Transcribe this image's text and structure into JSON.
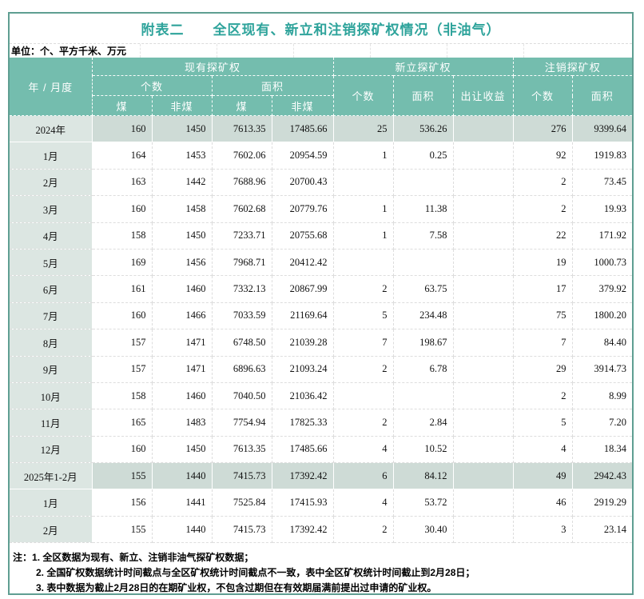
{
  "title": "附表二　　全区现有、新立和注销探矿权情况（非油气）",
  "unit_note": "单位：个、平方千米、万元",
  "colors": {
    "header_bg": "#74BDAE",
    "outer_border": "#5F9E92",
    "title_text": "#2EA39B",
    "highlight_row_bg": "#CEDBD6",
    "label_column_bg": "#DCE6E2"
  },
  "header": {
    "year_month": "年 / 月度",
    "existing": {
      "label": "现有探矿权",
      "count": {
        "label": "个数",
        "coal": "煤",
        "noncoal": "非煤"
      },
      "area": {
        "label": "面积",
        "coal": "煤",
        "noncoal": "非煤"
      }
    },
    "new": {
      "label": "新立探矿权",
      "count": "个数",
      "area": "面积",
      "revenue": "出让收益"
    },
    "cancel": {
      "label": "注销探矿权",
      "count": "个数",
      "area": "面积"
    }
  },
  "table": {
    "rows": [
      {
        "label": "2024年",
        "highlight": true,
        "cells": [
          "160",
          "1450",
          "7613.35",
          "17485.66",
          "25",
          "536.26",
          "",
          "276",
          "9399.64"
        ]
      },
      {
        "label": "1月",
        "highlight": false,
        "cells": [
          "164",
          "1453",
          "7602.06",
          "20954.59",
          "1",
          "0.25",
          "",
          "92",
          "1919.83"
        ]
      },
      {
        "label": "2月",
        "highlight": false,
        "cells": [
          "163",
          "1442",
          "7688.96",
          "20700.43",
          "",
          "",
          "",
          "2",
          "73.45"
        ]
      },
      {
        "label": "3月",
        "highlight": false,
        "cells": [
          "160",
          "1458",
          "7602.68",
          "20779.76",
          "1",
          "11.38",
          "",
          "2",
          "19.93"
        ]
      },
      {
        "label": "4月",
        "highlight": false,
        "cells": [
          "158",
          "1450",
          "7233.71",
          "20755.68",
          "1",
          "7.58",
          "",
          "22",
          "171.92"
        ]
      },
      {
        "label": "5月",
        "highlight": false,
        "cells": [
          "169",
          "1456",
          "7968.71",
          "20412.42",
          "",
          "",
          "",
          "19",
          "1000.73"
        ]
      },
      {
        "label": "6月",
        "highlight": false,
        "cells": [
          "161",
          "1460",
          "7332.13",
          "20867.99",
          "2",
          "63.75",
          "",
          "17",
          "379.92"
        ]
      },
      {
        "label": "7月",
        "highlight": false,
        "cells": [
          "160",
          "1466",
          "7033.59",
          "21169.64",
          "5",
          "234.48",
          "",
          "75",
          "1800.20"
        ]
      },
      {
        "label": "8月",
        "highlight": false,
        "cells": [
          "157",
          "1471",
          "6748.50",
          "21039.28",
          "7",
          "198.67",
          "",
          "7",
          "84.40"
        ]
      },
      {
        "label": "9月",
        "highlight": false,
        "cells": [
          "157",
          "1471",
          "6896.63",
          "21093.24",
          "2",
          "6.78",
          "",
          "29",
          "3914.73"
        ]
      },
      {
        "label": "10月",
        "highlight": false,
        "cells": [
          "158",
          "1460",
          "7040.50",
          "21036.42",
          "",
          "",
          "",
          "2",
          "8.99"
        ]
      },
      {
        "label": "11月",
        "highlight": false,
        "cells": [
          "165",
          "1483",
          "7754.94",
          "17825.33",
          "2",
          "2.84",
          "",
          "5",
          "7.20"
        ]
      },
      {
        "label": "12月",
        "highlight": false,
        "cells": [
          "160",
          "1450",
          "7613.35",
          "17485.66",
          "4",
          "10.52",
          "",
          "4",
          "18.34"
        ]
      },
      {
        "label": "2025年1-2月",
        "highlight": true,
        "cells": [
          "155",
          "1440",
          "7415.73",
          "17392.42",
          "6",
          "84.12",
          "",
          "49",
          "2942.43"
        ]
      },
      {
        "label": "1月",
        "highlight": false,
        "cells": [
          "156",
          "1441",
          "7525.84",
          "17415.93",
          "4",
          "53.72",
          "",
          "46",
          "2919.29"
        ]
      },
      {
        "label": "2月",
        "highlight": false,
        "cells": [
          "155",
          "1440",
          "7415.73",
          "17392.42",
          "2",
          "30.40",
          "",
          "3",
          "23.14"
        ]
      }
    ]
  },
  "notes": {
    "prefix": "注：",
    "items": [
      "1. 全区数据为现有、新立、注销非油气探矿权数据；",
      "2. 全国矿权数据统计时间截点与全区矿权统计时间截点不一致，表中全区矿权统计时间截止到2月28日；",
      "3. 表中数据为截止2月28日的在期矿业权，不包含过期但在有效期届满前提出过申请的矿业权。"
    ]
  }
}
